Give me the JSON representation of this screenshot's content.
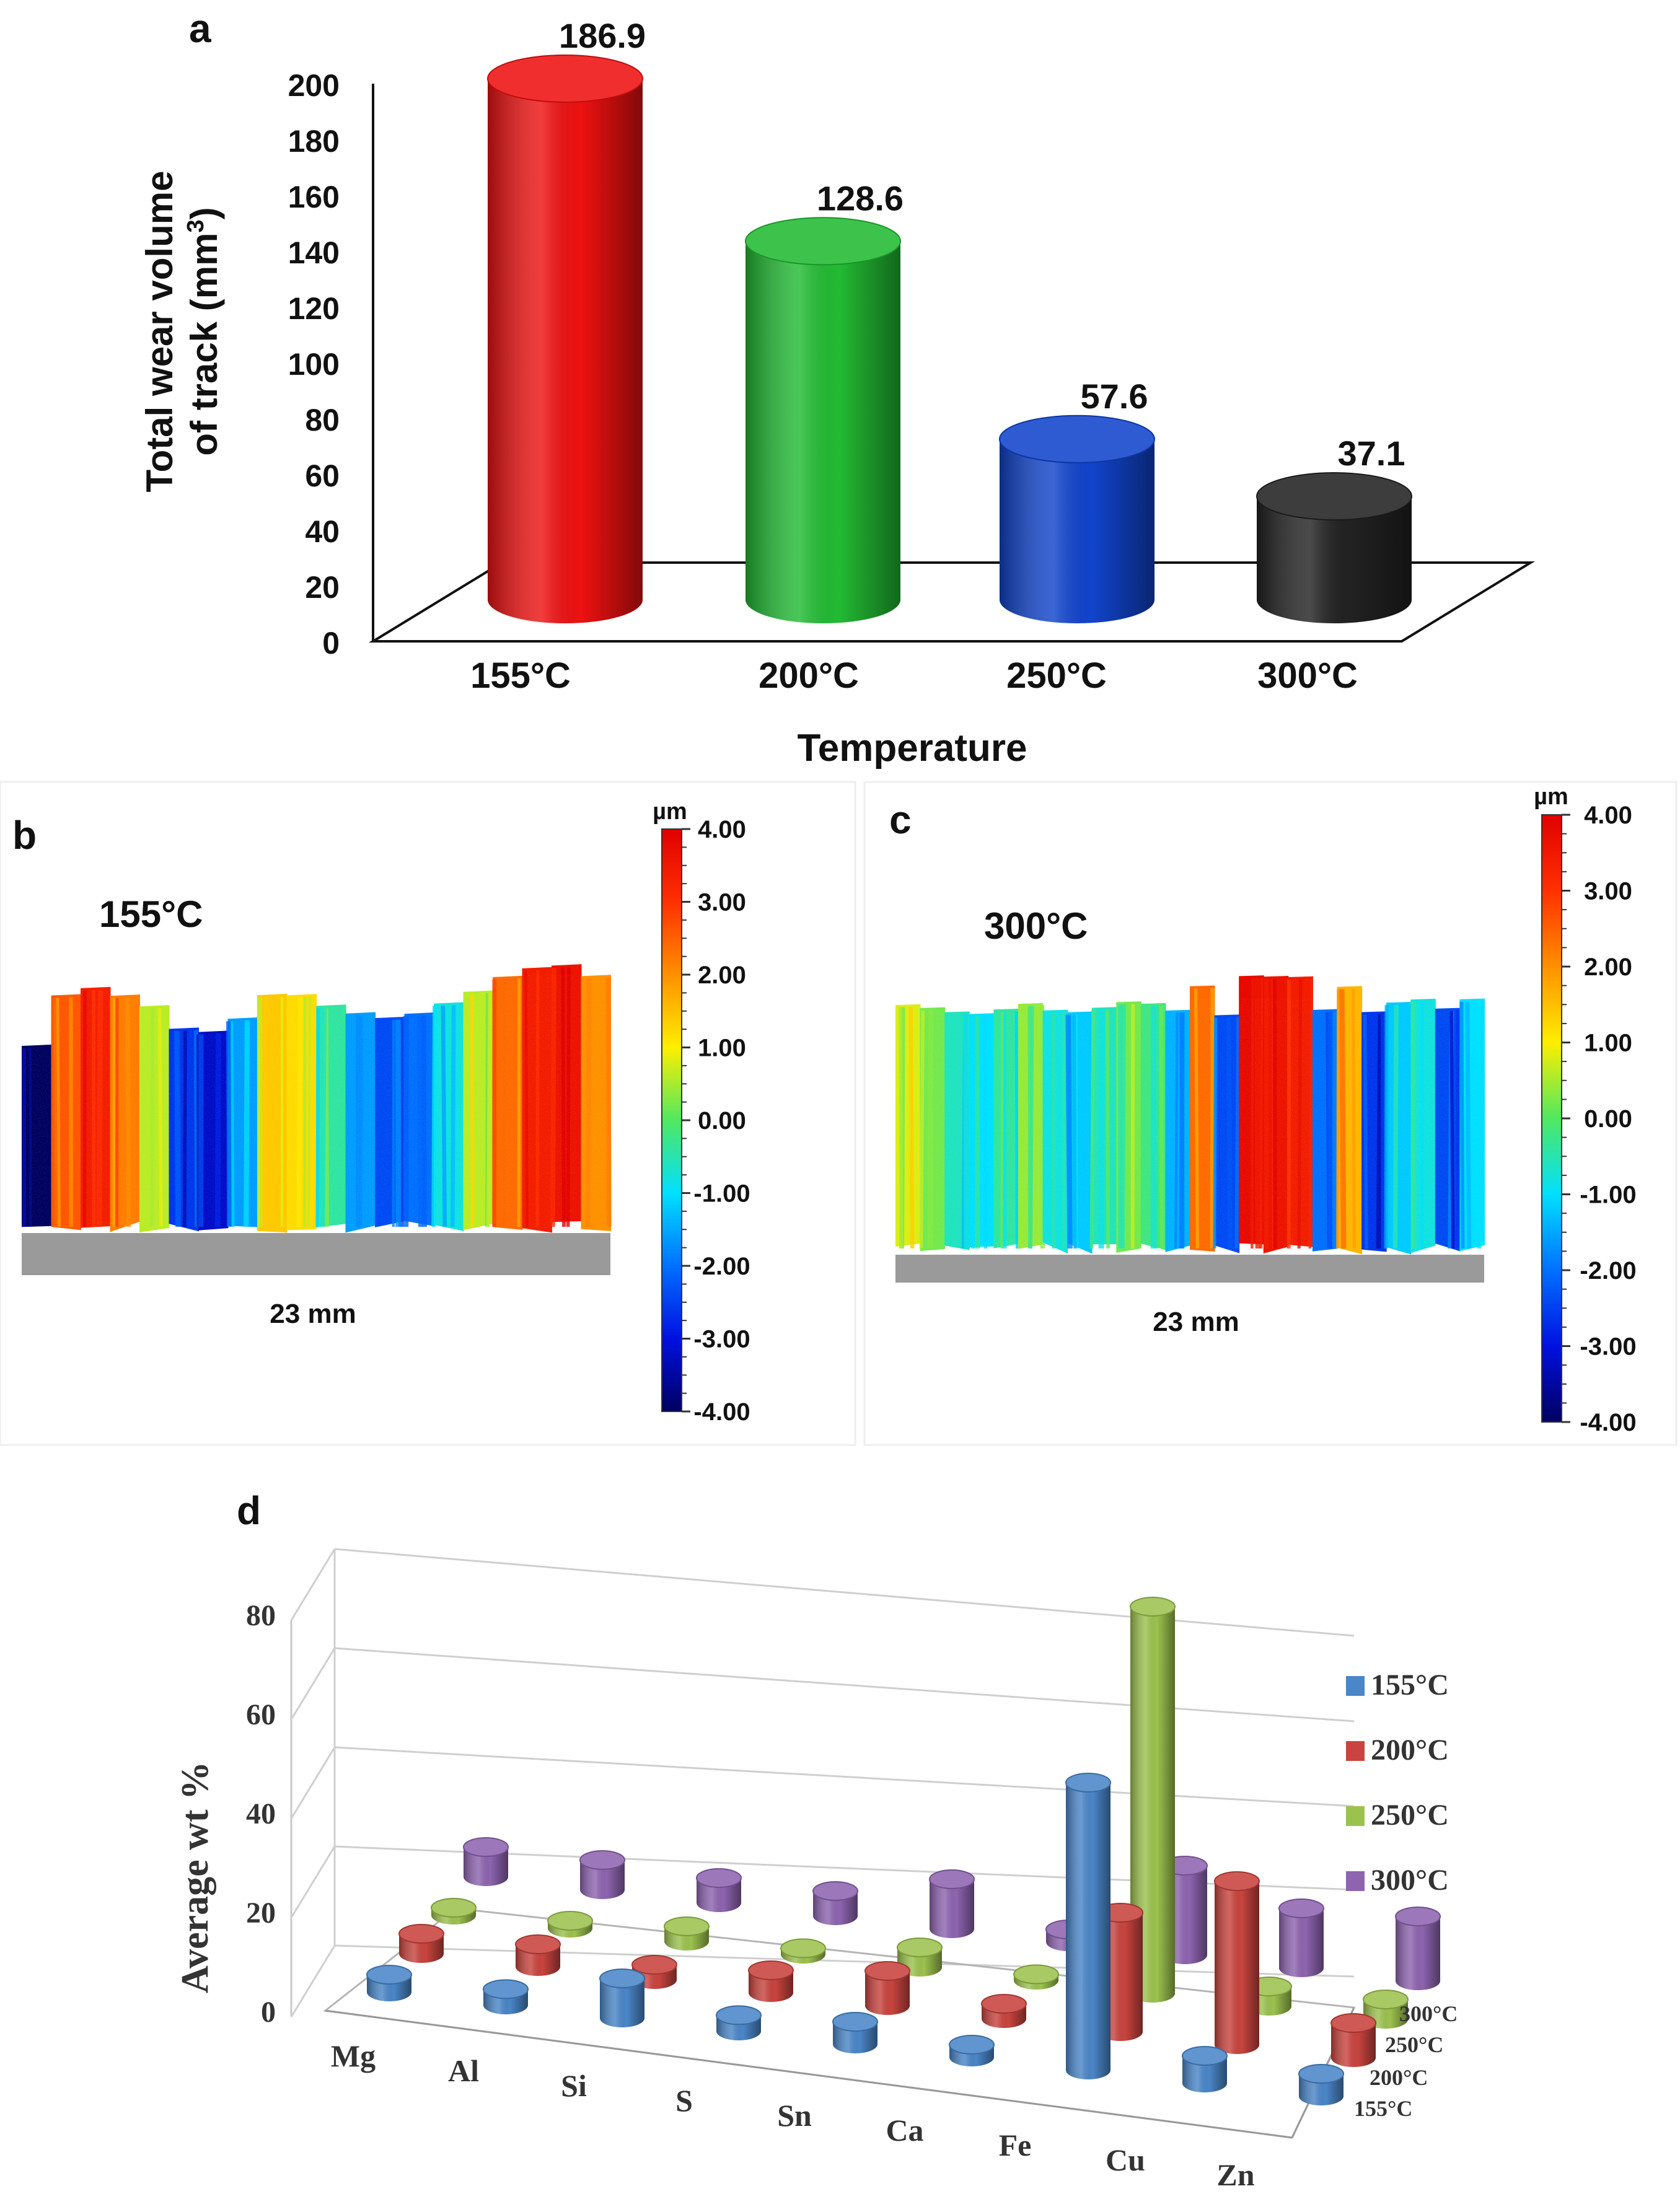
{
  "chart_data": [
    {
      "panel_label": "a",
      "type": "bar",
      "ylabel_line1": "Total wear volume",
      "ylabel_line2_prefix": "of track (mm",
      "ylabel_line2_sup": "3",
      "ylabel_line2_suffix": ")",
      "xlabel": "Temperature",
      "ylim": [
        0,
        200
      ],
      "yticks": [
        "0",
        "20",
        "40",
        "60",
        "80",
        "100",
        "120",
        "140",
        "160",
        "180",
        "200"
      ],
      "categories": [
        "155°C",
        "200°C",
        "250°C",
        "300°C"
      ],
      "values": [
        186.9,
        128.6,
        57.6,
        37.1
      ],
      "value_labels": [
        "186.9",
        "128.6",
        "57.6",
        "37.1"
      ],
      "colors": [
        "#ee1111",
        "#22bb33",
        "#1144cc",
        "#222222"
      ],
      "grid": false
    },
    {
      "panel_label": "b",
      "type": "heatmap",
      "temperature_label": "155°C",
      "scale_label": "23 mm",
      "colorbar_unit": "µm",
      "colorbar_ticks": [
        "4.00",
        "3.00",
        "2.00",
        "1.00",
        "0.00",
        "-1.00",
        "-2.00",
        "-3.00",
        "-4.00"
      ],
      "colorbar_range": [
        -4,
        4
      ],
      "stripe_profile": [
        -4,
        2.6,
        3.4,
        2.2,
        0.6,
        -2.6,
        -3.2,
        -1.6,
        1.4,
        1.2,
        -0.4,
        -1.6,
        -2.4,
        -2.0,
        -0.8,
        0.6,
        2.4,
        3.4,
        3.6,
        2.0
      ]
    },
    {
      "panel_label": "c",
      "type": "heatmap",
      "temperature_label": "300°C",
      "scale_label": "23 mm",
      "colorbar_unit": "µm",
      "colorbar_ticks": [
        "4.00",
        "3.00",
        "2.00",
        "1.00",
        "0.00",
        "-1.00",
        "-2.00",
        "-3.00",
        "-4.00"
      ],
      "colorbar_range": [
        -4,
        4
      ],
      "stripe_profile": [
        0.8,
        0.2,
        -0.6,
        -1.0,
        -0.4,
        0.4,
        -0.8,
        -1.2,
        -0.6,
        0.2,
        -0.2,
        -1.4,
        2.4,
        -2.4,
        3.8,
        3.6,
        3.4,
        -2.0,
        1.6,
        -2.6,
        -1.2,
        -0.8,
        -2.4,
        -1.0
      ]
    },
    {
      "panel_label": "d",
      "type": "bar",
      "ylabel": "Average wt %",
      "ylim": [
        0,
        80
      ],
      "yticks": [
        "0",
        "20",
        "40",
        "60",
        "80"
      ],
      "categories": [
        "Mg",
        "Al",
        "Si",
        "S",
        "Sn",
        "Ca",
        "Fe",
        "Cu",
        "Zn"
      ],
      "depth_labels": [
        "155°C",
        "200°C",
        "250°C",
        "300°C"
      ],
      "series": [
        {
          "name": "155°C",
          "color": "#4a86c8",
          "values": [
            3.5,
            3.2,
            8,
            3.2,
            4.5,
            2.5,
            58,
            5.5,
            4.5
          ]
        },
        {
          "name": "200°C",
          "color": "#c9443e",
          "values": [
            4,
            4.5,
            3,
            4.5,
            7,
            3,
            24,
            33,
            7
          ]
        },
        {
          "name": "250°C",
          "color": "#9cc24e",
          "values": [
            1.5,
            1.5,
            3,
            1.2,
            4,
            1.2,
            78,
            4,
            4
          ]
        },
        {
          "name": "300°C",
          "color": "#8e64b0",
          "values": [
            6,
            6,
            5,
            5,
            10,
            2.5,
            18,
            12,
            13
          ]
        }
      ]
    }
  ]
}
